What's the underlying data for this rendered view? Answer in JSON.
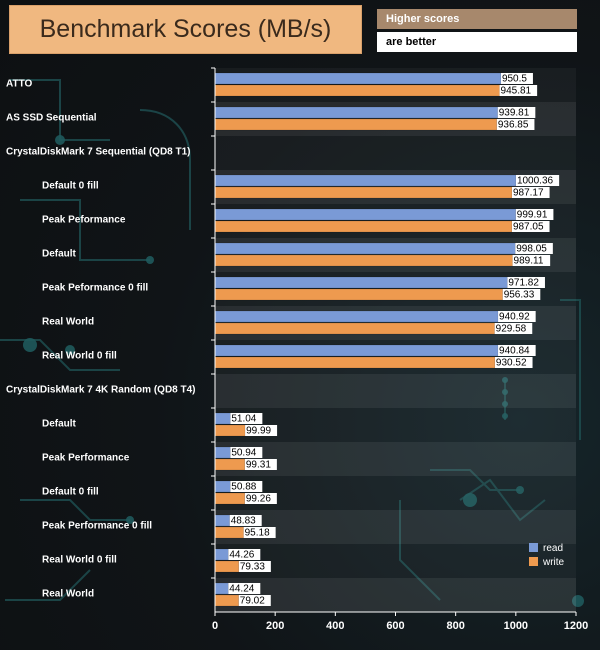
{
  "chart_data": {
    "type": "bar",
    "orientation": "horizontal",
    "title": "Benchmark Scores (MB/s)",
    "note_line1": "Higher scores",
    "note_line2": "are better",
    "categories": [
      "ATTO",
      "AS SSD Sequential",
      "CrystalDiskMark 7 Sequential (QD8 T1)",
      "Default 0 fill",
      "Peak Peformance",
      "Default",
      "Peak Peformance 0 fill",
      "Real World",
      "Real World 0 fill",
      "CrystalDiskMark 7 4K Random  (QD8 T4)",
      "Default",
      "Peak Performance",
      "Default 0 fill",
      "Peak Performance 0 fill",
      "Real World 0 fill",
      "Real World"
    ],
    "series": [
      {
        "name": "read",
        "color": "#7a9ad6",
        "values": [
          950.5,
          939.81,
          null,
          1000.36,
          999.91,
          998.05,
          971.82,
          940.92,
          940.84,
          null,
          51.04,
          50.94,
          50.88,
          48.83,
          44.26,
          44.24
        ]
      },
      {
        "name": "write",
        "color": "#ee9a4f",
        "values": [
          945.81,
          936.85,
          null,
          987.17,
          987.05,
          989.11,
          956.33,
          929.58,
          930.52,
          null,
          99.99,
          99.31,
          99.26,
          95.18,
          79.33,
          79.02
        ]
      }
    ],
    "value_labels": {
      "read": [
        "950.5",
        "939.81",
        "",
        "1000.36",
        "999.91",
        "998.05",
        "971.82",
        "940.92",
        "940.84",
        "",
        "51.04",
        "50.94",
        "50.88",
        "48.83",
        "44.26",
        "44.24"
      ],
      "write": [
        "945.81",
        "936.85",
        "",
        "987.17",
        "987.05",
        "989.11",
        "956.33",
        "929.58",
        "930.52",
        "",
        "99.99",
        "99.31",
        "99.26",
        "95.18",
        "79.33",
        "79.02"
      ]
    },
    "xlim": [
      0,
      1200
    ],
    "xticks": [
      "0",
      "200",
      "400",
      "600",
      "800",
      "1000",
      "1200"
    ],
    "legend_position": "bottom-right",
    "grid": false
  }
}
